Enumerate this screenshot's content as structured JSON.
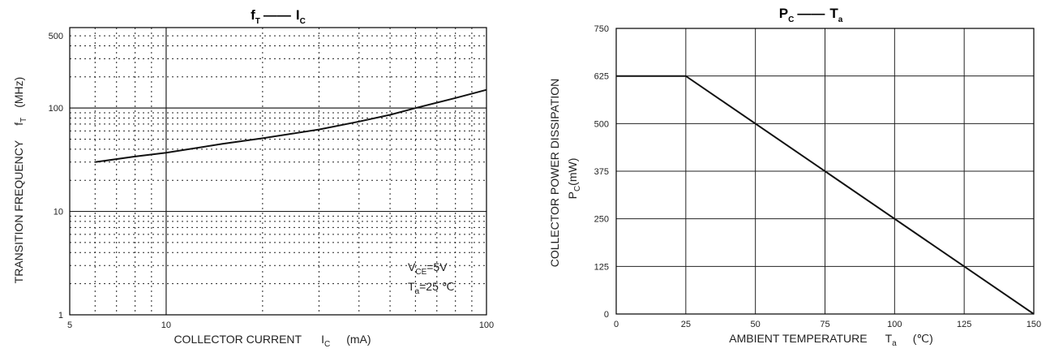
{
  "chart_data": [
    {
      "type": "line",
      "title_main": "f",
      "title_main_sub": "T",
      "title_dash": "——",
      "title_right": "I",
      "title_right_sub": "C",
      "xlabel": "COLLECTOR CURRENT",
      "xlabel_symbol": "I",
      "xlabel_symbol_sub": "C",
      "xlabel_unit": "(mA)",
      "ylabel": "TRANSITION FREQUENCY",
      "ylabel_symbol": "f",
      "ylabel_symbol_sub": "T",
      "ylabel_unit": "(MHz)",
      "x_scale": "log",
      "y_scale": "log",
      "xlim": [
        5,
        100
      ],
      "ylim": [
        1,
        600
      ],
      "x_ticks": [
        "5",
        "10",
        "100"
      ],
      "y_ticks": [
        "1",
        "10",
        "100",
        "500"
      ],
      "grid": "dotted",
      "annotations": [
        {
          "text": "V",
          "sub": "CE",
          "rest": "=5V"
        },
        {
          "text": "T",
          "sub": "a",
          "rest": "=25 ℃"
        }
      ],
      "series": [
        {
          "x": [
            6,
            8,
            10,
            15,
            20,
            30,
            40,
            50,
            60,
            80,
            100
          ],
          "y": [
            30,
            34,
            37,
            45,
            51,
            62,
            74,
            86,
            100,
            125,
            150
          ]
        }
      ]
    },
    {
      "type": "line",
      "title_main": "P",
      "title_main_sub": "C",
      "title_dash": "——",
      "title_right": "T",
      "title_right_sub": "a",
      "xlabel": "AMBIENT TEMPERATURE",
      "xlabel_symbol": "T",
      "xlabel_symbol_sub": "a",
      "xlabel_unit": "(℃)",
      "ylabel": "COLLECTOR POWER DISSIPATION",
      "ylabel2": "P",
      "ylabel2_sub": "C",
      "ylabel2_unit": "(mW)",
      "xlim": [
        0,
        150
      ],
      "ylim": [
        0,
        750
      ],
      "x_ticks": [
        "0",
        "25",
        "50",
        "75",
        "100",
        "125",
        "150"
      ],
      "y_ticks": [
        "0",
        "125",
        "250",
        "375",
        "500",
        "625",
        "750"
      ],
      "grid": "solid",
      "series": [
        {
          "x": [
            0,
            25,
            150
          ],
          "y": [
            625,
            625,
            0
          ]
        }
      ]
    }
  ]
}
